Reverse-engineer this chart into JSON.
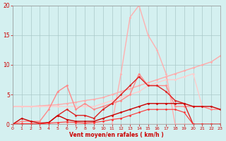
{
  "xlabel": "Vent moyen/en rafales ( km/h )",
  "xlim": [
    0,
    23
  ],
  "ylim": [
    0,
    20
  ],
  "yticks": [
    0,
    5,
    10,
    15,
    20
  ],
  "xticks": [
    0,
    1,
    2,
    3,
    4,
    5,
    6,
    7,
    8,
    9,
    10,
    11,
    12,
    13,
    14,
    15,
    16,
    17,
    18,
    19,
    20,
    21,
    22,
    23
  ],
  "bg_color": "#d4f0f0",
  "grid_color": "#aac8c8",
  "series": [
    {
      "x": [
        0,
        1,
        2,
        3,
        4,
        5,
        6,
        7,
        8,
        9,
        10,
        11,
        12,
        13,
        14,
        15,
        16,
        17,
        18,
        19,
        20,
        21,
        22,
        23
      ],
      "y": [
        0,
        0,
        0,
        0,
        0,
        0,
        0,
        0,
        0,
        0,
        0,
        0,
        0,
        0,
        0,
        0,
        0,
        0,
        0,
        0,
        0,
        0,
        0,
        0
      ],
      "color": "#ff0000",
      "lw": 0.8,
      "marker": null
    },
    {
      "x": [
        0,
        1,
        2,
        3,
        4,
        5,
        6,
        7,
        8,
        9,
        10,
        11,
        12,
        13,
        14,
        15,
        16,
        17,
        18,
        19,
        20,
        21,
        22,
        23
      ],
      "y": [
        3.0,
        3.0,
        3.0,
        3.1,
        3.2,
        3.3,
        3.5,
        3.7,
        4.0,
        4.2,
        4.5,
        5.0,
        5.5,
        6.0,
        6.5,
        7.0,
        7.5,
        8.0,
        8.5,
        9.0,
        9.5,
        10.0,
        10.5,
        11.5
      ],
      "color": "#ffaaaa",
      "lw": 1.0,
      "marker": "D",
      "ms": 1.5
    },
    {
      "x": [
        0,
        1,
        2,
        3,
        4,
        5,
        6,
        7,
        8,
        9,
        10,
        11,
        12,
        13,
        14,
        15,
        16,
        17,
        18,
        19,
        20,
        21,
        22,
        23
      ],
      "y": [
        3.0,
        3.0,
        3.0,
        3.0,
        3.0,
        3.0,
        3.0,
        3.0,
        3.0,
        3.0,
        3.5,
        4.0,
        4.5,
        5.0,
        5.5,
        6.5,
        7.0,
        7.5,
        7.5,
        8.0,
        8.5,
        3.0,
        2.5,
        2.5
      ],
      "color": "#ffcccc",
      "lw": 1.0,
      "marker": "D",
      "ms": 1.5
    },
    {
      "x": [
        0,
        1,
        2,
        3,
        4,
        5,
        6,
        7,
        8,
        9,
        10,
        11,
        12,
        13,
        14,
        15,
        16,
        17,
        18,
        19,
        20
      ],
      "y": [
        0,
        0,
        0,
        0,
        0,
        0,
        0,
        0,
        0,
        0,
        0,
        0,
        8.5,
        18.0,
        20.0,
        15.0,
        12.5,
        8.5,
        0,
        0,
        0
      ],
      "color": "#ffb0b0",
      "lw": 1.0,
      "marker": "D",
      "ms": 1.5
    },
    {
      "x": [
        0,
        1,
        2,
        3,
        4,
        5,
        6,
        7,
        8,
        9,
        10,
        11,
        12,
        13,
        14,
        15,
        16,
        17,
        18,
        19,
        20,
        21,
        22,
        23
      ],
      "y": [
        0,
        0.5,
        0.5,
        0.5,
        2.5,
        5.5,
        6.5,
        2.5,
        3.5,
        2.5,
        3.0,
        3.5,
        4.0,
        5.0,
        8.5,
        6.5,
        6.5,
        6.5,
        3.0,
        3.0,
        3.0,
        3.0,
        2.5,
        2.5
      ],
      "color": "#ff8888",
      "lw": 1.0,
      "marker": "D",
      "ms": 1.5
    },
    {
      "x": [
        0,
        1,
        2,
        3,
        4,
        5,
        6,
        7,
        8,
        9,
        10,
        11,
        12,
        13,
        14,
        15,
        16,
        17,
        18,
        19,
        20,
        21,
        22,
        23
      ],
      "y": [
        0,
        0,
        0,
        0,
        0.3,
        1.5,
        2.5,
        1.5,
        1.5,
        1.0,
        2.5,
        3.5,
        5.0,
        6.5,
        8.0,
        6.5,
        6.5,
        5.5,
        4.0,
        3.5,
        0.0,
        0,
        0,
        0
      ],
      "color": "#dd2222",
      "lw": 1.0,
      "marker": "D",
      "ms": 1.5
    },
    {
      "x": [
        0,
        1,
        2,
        3,
        4,
        5,
        6,
        7,
        8,
        9,
        10,
        11,
        12,
        13,
        14,
        15,
        16,
        17,
        18,
        19,
        20,
        21,
        22,
        23
      ],
      "y": [
        0,
        1.0,
        0.5,
        0.2,
        0.3,
        1.5,
        0.8,
        0.5,
        0.5,
        0.5,
        1.0,
        1.5,
        2.0,
        2.5,
        3.0,
        3.5,
        3.5,
        3.5,
        3.5,
        3.5,
        3.0,
        3.0,
        3.0,
        2.5
      ],
      "color": "#cc0000",
      "lw": 1.0,
      "marker": "D",
      "ms": 1.5
    },
    {
      "x": [
        0,
        1,
        2,
        3,
        4,
        5,
        6,
        7,
        8,
        9,
        10,
        11,
        12,
        13,
        14,
        15,
        16,
        17,
        18,
        19,
        20,
        21,
        22,
        23
      ],
      "y": [
        0,
        0.1,
        0.1,
        0.1,
        0.2,
        0.3,
        0.4,
        0.3,
        0.2,
        0.3,
        0.5,
        0.8,
        1.0,
        1.5,
        2.0,
        2.5,
        2.5,
        2.5,
        2.5,
        2.0,
        0,
        0,
        0,
        0
      ],
      "color": "#ff3333",
      "lw": 0.8,
      "marker": "D",
      "ms": 1.5
    }
  ]
}
